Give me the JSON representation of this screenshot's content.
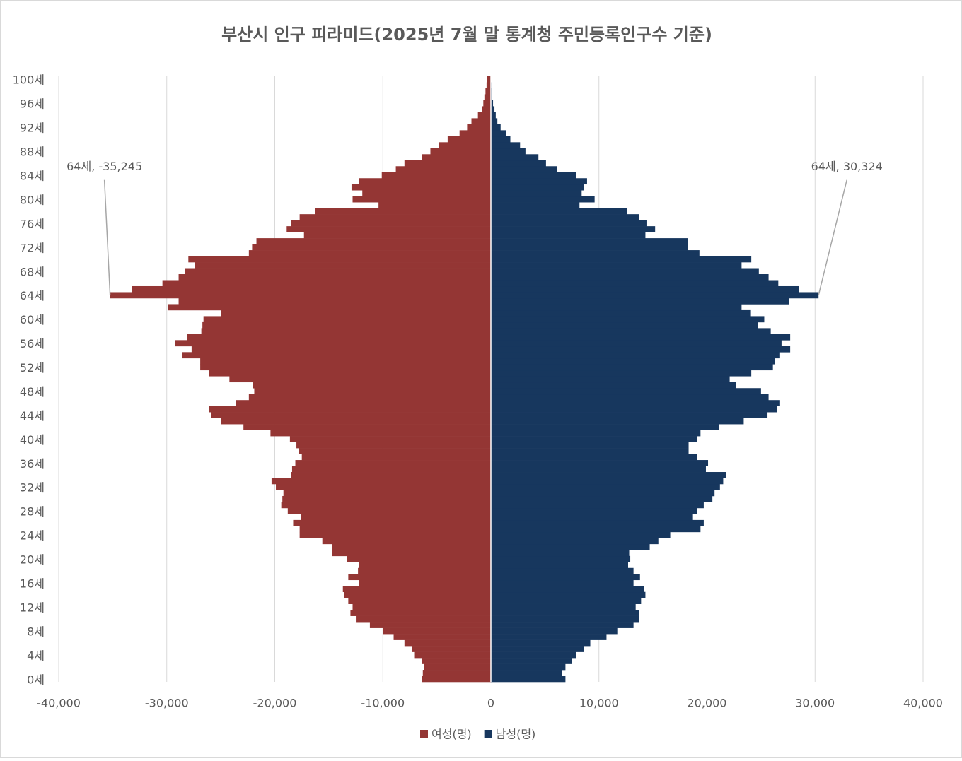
{
  "chart_data": {
    "type": "bar",
    "orientation": "horizontal",
    "stacked": "diverging",
    "title": "부산시 인구 피라미드(2025년 7월 말 통계청 주민등록인구수 기준)",
    "categories": [
      "0세",
      null,
      null,
      null,
      "4세",
      null,
      null,
      null,
      "8세",
      null,
      null,
      null,
      "12세",
      null,
      null,
      null,
      "16세",
      null,
      null,
      null,
      "20세",
      null,
      null,
      null,
      "24세",
      null,
      null,
      null,
      "28세",
      null,
      null,
      null,
      "32세",
      null,
      null,
      null,
      "36세",
      null,
      null,
      null,
      "40세",
      null,
      null,
      null,
      "44세",
      null,
      null,
      null,
      "48세",
      null,
      null,
      null,
      "52세",
      null,
      null,
      null,
      "56세",
      null,
      null,
      null,
      "60세",
      null,
      null,
      null,
      "64세",
      null,
      null,
      null,
      "68세",
      null,
      null,
      null,
      "72세",
      null,
      null,
      null,
      "76세",
      null,
      null,
      null,
      "80세",
      null,
      null,
      null,
      "84세",
      null,
      null,
      null,
      "88세",
      null,
      null,
      null,
      "92세",
      null,
      null,
      null,
      "96세",
      null,
      null,
      null,
      "100세"
    ],
    "series": [
      {
        "name": "여성(명)",
        "color": "#943634",
        "values": [
          -6350,
          -6300,
          -6200,
          -6400,
          -7100,
          -7300,
          -8000,
          -9000,
          -10000,
          -11200,
          -12500,
          -13000,
          -12800,
          -13200,
          -13600,
          -13700,
          -12200,
          -13200,
          -12300,
          -12200,
          -13300,
          -14700,
          -14700,
          -15600,
          -17700,
          -17700,
          -18300,
          -17600,
          -18800,
          -19400,
          -19300,
          -19200,
          -19900,
          -20300,
          -18500,
          -18400,
          -18100,
          -17500,
          -17800,
          -18000,
          -18600,
          -20400,
          -22900,
          -25000,
          -25900,
          -26100,
          -23600,
          -22400,
          -21900,
          -22000,
          -24200,
          -26100,
          -26900,
          -26900,
          -28600,
          -27700,
          -29200,
          -28100,
          -26800,
          -26700,
          -26600,
          -25000,
          -29900,
          -28900,
          -35245,
          -33200,
          -30400,
          -28900,
          -28300,
          -27400,
          -28000,
          -22400,
          -22100,
          -21700,
          -17300,
          -18900,
          -18500,
          -17700,
          -16300,
          -10400,
          -12800,
          -11900,
          -12900,
          -12200,
          -10100,
          -8800,
          -8000,
          -6400,
          -5600,
          -4800,
          -4000,
          -2900,
          -2200,
          -1800,
          -1200,
          -850,
          -700,
          -600,
          -500,
          -400,
          -350
        ],
        "value_labels": [
          null,
          null,
          null,
          null,
          null,
          null,
          null,
          null,
          null,
          null,
          null,
          null,
          null,
          null,
          null,
          null,
          null,
          null,
          null,
          null,
          null,
          null,
          null,
          null,
          null,
          null,
          null,
          null,
          null,
          null,
          null,
          null,
          null,
          null,
          null,
          null,
          null,
          null,
          null,
          null,
          null,
          null,
          null,
          null,
          null,
          null,
          null,
          null,
          null,
          null,
          null,
          null,
          null,
          null,
          null,
          null,
          null,
          null,
          null,
          null,
          null,
          null,
          null,
          null,
          "64세, -35,245",
          null,
          null,
          null,
          null,
          null,
          null,
          null,
          null,
          null,
          null,
          null,
          null,
          null,
          null,
          null,
          null,
          null,
          null,
          null,
          null,
          null,
          null,
          null,
          null,
          null,
          null,
          null,
          null,
          null,
          null,
          null,
          null,
          null,
          null,
          null,
          null
        ]
      },
      {
        "name": "남성(명)",
        "color": "#17375e",
        "values": [
          6900,
          6600,
          6900,
          7500,
          7900,
          8600,
          9200,
          10700,
          11700,
          13200,
          13700,
          13700,
          13400,
          13900,
          14300,
          14200,
          13200,
          13800,
          13200,
          12700,
          12900,
          12800,
          14700,
          15500,
          16600,
          19400,
          19700,
          18700,
          19100,
          19700,
          20500,
          20700,
          21200,
          21500,
          21800,
          19900,
          20100,
          19100,
          18300,
          18300,
          19100,
          19400,
          21100,
          23400,
          25600,
          26500,
          26700,
          25700,
          25000,
          22700,
          22100,
          24100,
          26100,
          26300,
          26700,
          27700,
          26900,
          27700,
          25900,
          24700,
          25300,
          24000,
          23200,
          27600,
          30324,
          28500,
          26600,
          25700,
          24800,
          23200,
          24100,
          19300,
          18200,
          18200,
          14300,
          15200,
          14400,
          13700,
          12600,
          8200,
          9600,
          8400,
          8600,
          8900,
          7900,
          6100,
          5100,
          4400,
          3200,
          2700,
          1800,
          1400,
          900,
          600,
          450,
          330,
          200,
          130,
          80,
          50,
          30
        ],
        "value_labels": [
          null,
          null,
          null,
          null,
          null,
          null,
          null,
          null,
          null,
          null,
          null,
          null,
          null,
          null,
          null,
          null,
          null,
          null,
          null,
          null,
          null,
          null,
          null,
          null,
          null,
          null,
          null,
          null,
          null,
          null,
          null,
          null,
          null,
          null,
          null,
          null,
          null,
          null,
          null,
          null,
          null,
          null,
          null,
          null,
          null,
          null,
          null,
          null,
          null,
          null,
          null,
          null,
          null,
          null,
          null,
          null,
          null,
          null,
          null,
          null,
          null,
          null,
          null,
          null,
          "64세, 30,324",
          null,
          null,
          null,
          null,
          null,
          null,
          null,
          null,
          null,
          null,
          null,
          null,
          null,
          null,
          null,
          null,
          null,
          null,
          null,
          null,
          null,
          null,
          null,
          null,
          null,
          null,
          null,
          null,
          null,
          null,
          null,
          null,
          null,
          null,
          null,
          null
        ]
      }
    ],
    "xlim": [
      -40000,
      40000
    ],
    "xticks": [
      {
        "value": -40000,
        "label": "-40,000"
      },
      {
        "value": -30000,
        "label": "-30,000"
      },
      {
        "value": -20000,
        "label": "-20,000"
      },
      {
        "value": -10000,
        "label": "-10,000"
      },
      0,
      {
        "value": 10000,
        "label": "10,000"
      },
      {
        "value": 20000,
        "label": "20,000"
      },
      {
        "value": 30000,
        "label": "30,000"
      },
      {
        "value": 40000,
        "label": "40,000"
      }
    ],
    "grid": true,
    "legend": "bottom"
  }
}
